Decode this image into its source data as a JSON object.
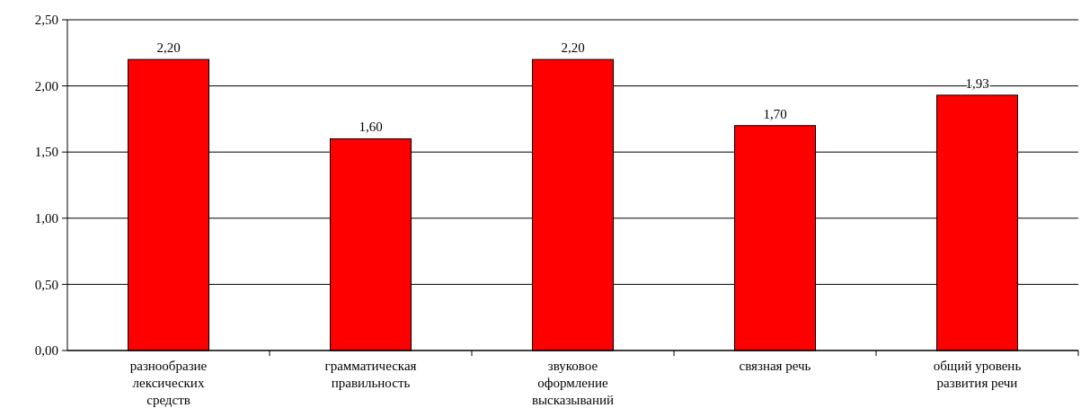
{
  "chart_data": {
    "type": "bar",
    "categories": [
      "разнообразие лексических средств",
      "грамматическая правильность",
      "звуковое оформление высказываний",
      "связная речь",
      "общий уровень развития речи"
    ],
    "values": [
      2.2,
      1.6,
      2.2,
      1.7,
      1.93
    ],
    "value_labels": [
      "2,20",
      "1,60",
      "2,20",
      "1,70",
      "1,93"
    ],
    "color": "#ff0000",
    "ylim": [
      0,
      2.5
    ],
    "yticks": [
      {
        "value": 0,
        "label": "0,00"
      },
      {
        "value": 0.5,
        "label": "0,50"
      },
      {
        "value": 1,
        "label": "1,00"
      },
      {
        "value": 1.5,
        "label": "1,50"
      },
      {
        "value": 2,
        "label": "2,00"
      },
      {
        "value": 2.5,
        "label": "2,50"
      }
    ],
    "grid": "y"
  }
}
